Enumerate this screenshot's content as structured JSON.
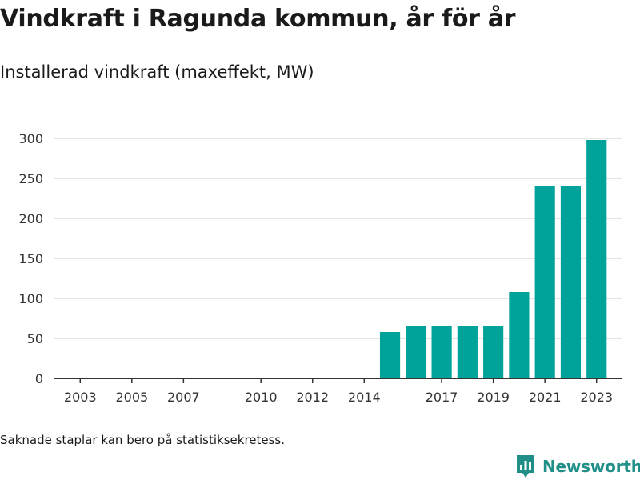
{
  "title": "Vindkraft i Ragunda kommun, år för år",
  "subtitle": "Installerad vindkraft (maxeffekt, MW)",
  "footnote": "Saknade staplar kan bero på statistiksekretess.",
  "brand": "Newsworthy",
  "colors": {
    "bar": "#00a39a",
    "grid": "#dcdcdc",
    "axis": "#333333",
    "brand": "#1f8f87"
  },
  "chart_data": {
    "type": "bar",
    "title": "",
    "xlabel": "",
    "ylabel": "",
    "grid": true,
    "x_range": [
      2002,
      2024
    ],
    "ylim": [
      0,
      300
    ],
    "y_ticks": [
      0,
      50,
      100,
      150,
      200,
      250,
      300
    ],
    "x_ticks": [
      2003,
      2005,
      2007,
      2010,
      2012,
      2014,
      2017,
      2019,
      2021,
      2023
    ],
    "categories": [
      2015,
      2016,
      2017,
      2018,
      2019,
      2020,
      2021,
      2022,
      2023
    ],
    "values": [
      58,
      65,
      65,
      65,
      65,
      108,
      240,
      240,
      298
    ]
  }
}
